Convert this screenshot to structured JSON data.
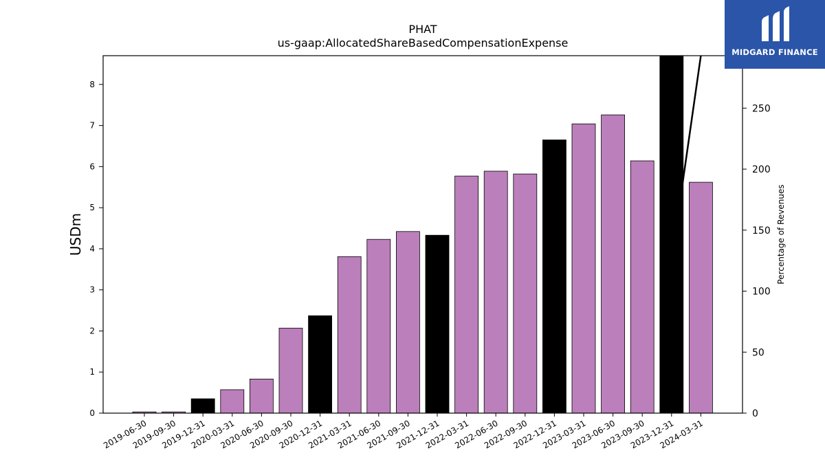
{
  "logo": {
    "name": "MIDGARD FINANCE",
    "bg_color": "#2a55a8"
  },
  "chart_data": {
    "type": "bar",
    "title": "PHAT",
    "subtitle": "us-gaap:AllocatedShareBasedCompensationExpense",
    "ylabel": "USDm",
    "y2label": "Percentage of Revenues",
    "ylim": [
      0,
      8.7
    ],
    "y2lim": [
      0,
      293
    ],
    "yticks": [
      0,
      1,
      2,
      3,
      4,
      5,
      6,
      7,
      8
    ],
    "y2ticks": [
      0,
      50,
      100,
      150,
      200,
      250
    ],
    "categories": [
      "2019-06-30",
      "2019-09-30",
      "2019-12-31",
      "2020-03-31",
      "2020-06-30",
      "2020-09-30",
      "2020-12-31",
      "2021-03-31",
      "2021-06-30",
      "2021-09-30",
      "2021-12-31",
      "2022-03-31",
      "2022-06-30",
      "2022-09-30",
      "2022-12-31",
      "2023-03-31",
      "2023-06-30",
      "2023-09-30",
      "2023-12-31",
      "2024-03-31"
    ],
    "values": [
      0.03,
      0.03,
      0.35,
      0.57,
      0.83,
      2.07,
      2.37,
      3.81,
      4.23,
      4.42,
      4.33,
      5.77,
      5.89,
      5.82,
      6.65,
      7.04,
      7.26,
      6.14,
      8.7,
      5.62
    ],
    "bar_colors": [
      "#bb7fbb",
      "#bb7fbb",
      "#000000",
      "#bb7fbb",
      "#bb7fbb",
      "#bb7fbb",
      "#000000",
      "#bb7fbb",
      "#bb7fbb",
      "#bb7fbb",
      "#000000",
      "#bb7fbb",
      "#bb7fbb",
      "#bb7fbb",
      "#000000",
      "#bb7fbb",
      "#bb7fbb",
      "#bb7fbb",
      "#000000",
      "#bb7fbb"
    ],
    "line_series": {
      "points": [
        [
          "2023-12-31",
          112
        ],
        [
          "2023-12-31",
          125
        ],
        [
          "2024-03-31",
          293
        ]
      ],
      "color": "#000000"
    },
    "grid": false,
    "legend": "none"
  }
}
